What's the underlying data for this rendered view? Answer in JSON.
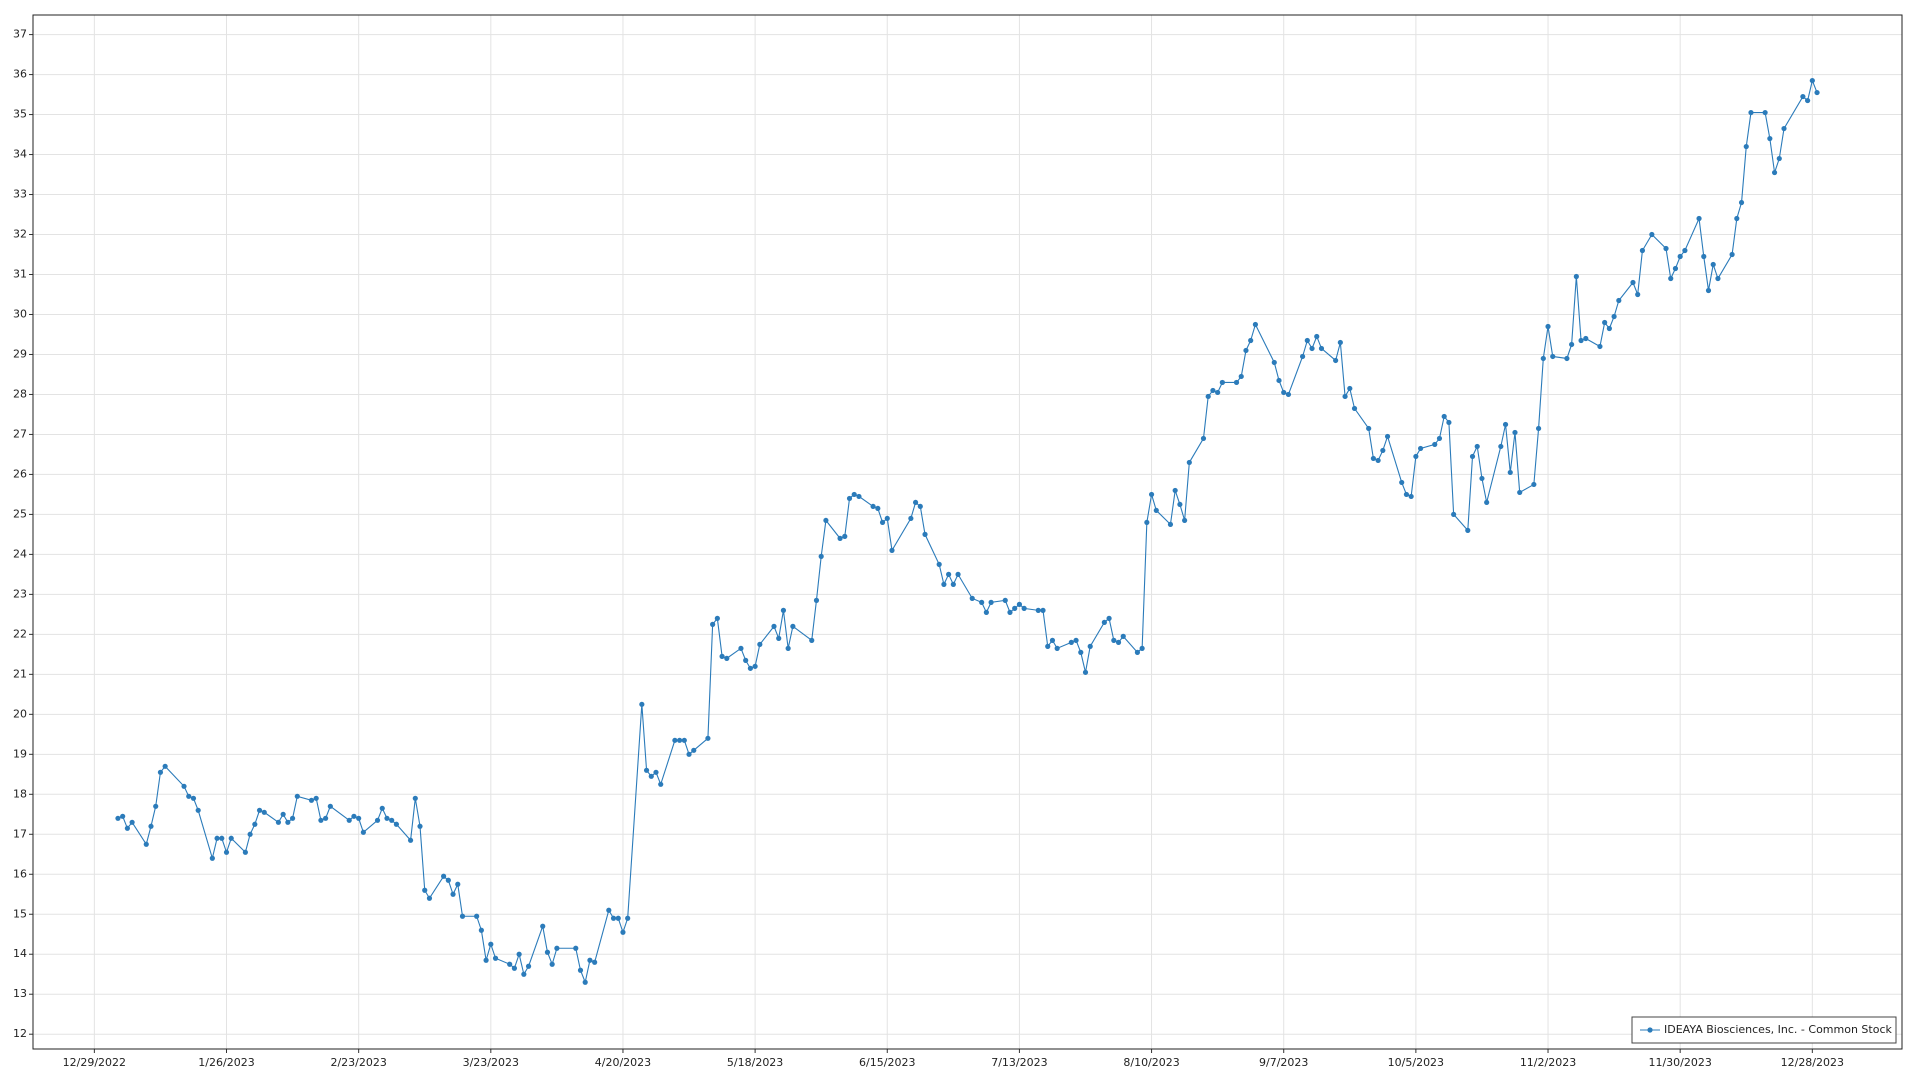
{
  "chart_data": {
    "type": "line",
    "x": [
      "1/3/2023",
      "1/4/2023",
      "1/5/2023",
      "1/6/2023",
      "1/9/2023",
      "1/10/2023",
      "1/11/2023",
      "1/12/2023",
      "1/13/2023",
      "1/17/2023",
      "1/18/2023",
      "1/19/2023",
      "1/20/2023",
      "1/23/2023",
      "1/24/2023",
      "1/25/2023",
      "1/26/2023",
      "1/27/2023",
      "1/30/2023",
      "1/31/2023",
      "2/1/2023",
      "2/2/2023",
      "2/3/2023",
      "2/6/2023",
      "2/7/2023",
      "2/8/2023",
      "2/9/2023",
      "2/10/2023",
      "2/13/2023",
      "2/14/2023",
      "2/15/2023",
      "2/16/2023",
      "2/17/2023",
      "2/21/2023",
      "2/22/2023",
      "2/23/2023",
      "2/24/2023",
      "2/27/2023",
      "2/28/2023",
      "3/1/2023",
      "3/2/2023",
      "3/3/2023",
      "3/6/2023",
      "3/7/2023",
      "3/8/2023",
      "3/9/2023",
      "3/10/2023",
      "3/13/2023",
      "3/14/2023",
      "3/15/2023",
      "3/16/2023",
      "3/17/2023",
      "3/20/2023",
      "3/21/2023",
      "3/22/2023",
      "3/23/2023",
      "3/24/2023",
      "3/27/2023",
      "3/28/2023",
      "3/29/2023",
      "3/30/2023",
      "3/31/2023",
      "4/3/2023",
      "4/4/2023",
      "4/5/2023",
      "4/6/2023",
      "4/10/2023",
      "4/11/2023",
      "4/12/2023",
      "4/13/2023",
      "4/14/2023",
      "4/17/2023",
      "4/18/2023",
      "4/19/2023",
      "4/20/2023",
      "4/21/2023",
      "4/24/2023",
      "4/25/2023",
      "4/26/2023",
      "4/27/2023",
      "4/28/2023",
      "5/1/2023",
      "5/2/2023",
      "5/3/2023",
      "5/4/2023",
      "5/5/2023",
      "5/8/2023",
      "5/9/2023",
      "5/10/2023",
      "5/11/2023",
      "5/12/2023",
      "5/15/2023",
      "5/16/2023",
      "5/17/2023",
      "5/18/2023",
      "5/19/2023",
      "5/22/2023",
      "5/23/2023",
      "5/24/2023",
      "5/25/2023",
      "5/26/2023",
      "5/30/2023",
      "5/31/2023",
      "6/1/2023",
      "6/2/2023",
      "6/5/2023",
      "6/6/2023",
      "6/7/2023",
      "6/8/2023",
      "6/9/2023",
      "6/12/2023",
      "6/13/2023",
      "6/14/2023",
      "6/15/2023",
      "6/16/2023",
      "6/20/2023",
      "6/21/2023",
      "6/22/2023",
      "6/23/2023",
      "6/26/2023",
      "6/27/2023",
      "6/28/2023",
      "6/29/2023",
      "6/30/2023",
      "7/3/2023",
      "7/5/2023",
      "7/6/2023",
      "7/7/2023",
      "7/10/2023",
      "7/11/2023",
      "7/12/2023",
      "7/13/2023",
      "7/14/2023",
      "7/17/2023",
      "7/18/2023",
      "7/19/2023",
      "7/20/2023",
      "7/21/2023",
      "7/24/2023",
      "7/25/2023",
      "7/26/2023",
      "7/27/2023",
      "7/28/2023",
      "7/31/2023",
      "8/1/2023",
      "8/2/2023",
      "8/3/2023",
      "8/4/2023",
      "8/7/2023",
      "8/8/2023",
      "8/9/2023",
      "8/10/2023",
      "8/11/2023",
      "8/14/2023",
      "8/15/2023",
      "8/16/2023",
      "8/17/2023",
      "8/18/2023",
      "8/21/2023",
      "8/22/2023",
      "8/23/2023",
      "8/24/2023",
      "8/25/2023",
      "8/28/2023",
      "8/29/2023",
      "8/30/2023",
      "8/31/2023",
      "9/1/2023",
      "9/5/2023",
      "9/6/2023",
      "9/7/2023",
      "9/8/2023",
      "9/11/2023",
      "9/12/2023",
      "9/13/2023",
      "9/14/2023",
      "9/15/2023",
      "9/18/2023",
      "9/19/2023",
      "9/20/2023",
      "9/21/2023",
      "9/22/2023",
      "9/25/2023",
      "9/26/2023",
      "9/27/2023",
      "9/28/2023",
      "9/29/2023",
      "10/2/2023",
      "10/3/2023",
      "10/4/2023",
      "10/5/2023",
      "10/6/2023",
      "10/9/2023",
      "10/10/2023",
      "10/11/2023",
      "10/12/2023",
      "10/13/2023",
      "10/16/2023",
      "10/17/2023",
      "10/18/2023",
      "10/19/2023",
      "10/20/2023",
      "10/23/2023",
      "10/24/2023",
      "10/25/2023",
      "10/26/2023",
      "10/27/2023",
      "10/30/2023",
      "10/31/2023",
      "11/1/2023",
      "11/2/2023",
      "11/3/2023",
      "11/6/2023",
      "11/7/2023",
      "11/8/2023",
      "11/9/2023",
      "11/10/2023",
      "11/13/2023",
      "11/14/2023",
      "11/15/2023",
      "11/16/2023",
      "11/17/2023",
      "11/20/2023",
      "11/21/2023",
      "11/22/2023",
      "11/24/2023",
      "11/27/2023",
      "11/28/2023",
      "11/29/2023",
      "11/30/2023",
      "12/1/2023",
      "12/4/2023",
      "12/5/2023",
      "12/6/2023",
      "12/7/2023",
      "12/8/2023",
      "12/11/2023",
      "12/12/2023",
      "12/13/2023",
      "12/14/2023",
      "12/15/2023",
      "12/18/2023",
      "12/19/2023",
      "12/20/2023",
      "12/21/2023",
      "12/22/2023",
      "12/26/2023",
      "12/27/2023",
      "12/28/2023",
      "12/29/2023"
    ],
    "series": [
      {
        "name": "IDEAYA Biosciences, Inc. - Common Stock",
        "color": "#2b7bba",
        "values": [
          17.4,
          17.45,
          17.15,
          17.3,
          16.75,
          17.2,
          17.7,
          18.55,
          18.7,
          18.2,
          17.95,
          17.9,
          17.6,
          16.4,
          16.9,
          16.9,
          16.55,
          16.9,
          16.55,
          17.0,
          17.25,
          17.6,
          17.55,
          17.3,
          17.5,
          17.3,
          17.4,
          17.95,
          17.85,
          17.9,
          17.35,
          17.4,
          17.7,
          17.35,
          17.45,
          17.4,
          17.05,
          17.35,
          17.65,
          17.4,
          17.35,
          17.25,
          16.85,
          17.9,
          17.2,
          15.6,
          15.4,
          15.95,
          15.85,
          15.5,
          15.75,
          14.95,
          14.95,
          14.6,
          13.85,
          14.25,
          13.9,
          13.75,
          13.65,
          14.0,
          13.5,
          13.7,
          14.7,
          14.05,
          13.75,
          14.15,
          14.15,
          13.6,
          13.3,
          13.85,
          13.8,
          15.1,
          14.9,
          14.9,
          14.55,
          14.9,
          20.25,
          18.6,
          18.45,
          18.55,
          18.25,
          19.35,
          19.35,
          19.35,
          19.0,
          19.1,
          19.4,
          22.25,
          22.4,
          21.45,
          21.4,
          21.65,
          21.35,
          21.15,
          21.2,
          21.75,
          22.2,
          21.9,
          22.6,
          21.65,
          22.2,
          21.85,
          22.85,
          23.95,
          24.85,
          24.4,
          24.45,
          25.4,
          25.5,
          25.45,
          25.2,
          25.15,
          24.8,
          24.9,
          24.1,
          24.9,
          25.3,
          25.2,
          24.5,
          23.75,
          23.25,
          23.5,
          23.25,
          23.5,
          22.9,
          22.8,
          22.55,
          22.8,
          22.85,
          22.55,
          22.65,
          22.75,
          22.65,
          22.6,
          22.6,
          21.7,
          21.85,
          21.65,
          21.8,
          21.85,
          21.55,
          21.05,
          21.7,
          22.3,
          22.4,
          21.85,
          21.8,
          21.95,
          21.55,
          21.65,
          24.8,
          25.5,
          25.1,
          24.75,
          25.6,
          25.25,
          24.85,
          26.3,
          26.9,
          27.95,
          28.1,
          28.05,
          28.3,
          28.3,
          28.45,
          29.1,
          29.35,
          29.75,
          28.8,
          28.35,
          28.05,
          28.0,
          28.95,
          29.35,
          29.15,
          29.45,
          29.15,
          28.85,
          29.3,
          27.95,
          28.15,
          27.65,
          27.15,
          26.4,
          26.35,
          26.6,
          26.95,
          25.8,
          25.5,
          25.45,
          26.45,
          26.65,
          26.75,
          26.9,
          27.45,
          27.3,
          25.0,
          24.6,
          26.45,
          26.7,
          25.9,
          25.3,
          26.7,
          27.25,
          26.05,
          27.05,
          25.55,
          25.75,
          27.15,
          28.9,
          29.7,
          28.95,
          28.9,
          29.25,
          30.95,
          29.35,
          29.4,
          29.2,
          29.8,
          29.65,
          29.95,
          30.35,
          30.8,
          30.5,
          31.6,
          32.0,
          31.65,
          30.9,
          31.15,
          31.45,
          31.6,
          32.4,
          31.45,
          30.6,
          31.25,
          30.9,
          31.5,
          32.4,
          32.8,
          34.2,
          35.05,
          35.05,
          34.4,
          33.55,
          33.9,
          34.65,
          35.45,
          35.35,
          35.85,
          35.55
        ]
      }
    ],
    "xlim": [
      "12/16/2022",
      "1/16/2024"
    ],
    "xticks": [
      "12/29/2022",
      "1/26/2023",
      "2/23/2023",
      "3/23/2023",
      "4/20/2023",
      "5/18/2023",
      "6/15/2023",
      "7/13/2023",
      "8/10/2023",
      "9/7/2023",
      "10/5/2023",
      "11/2/2023",
      "11/30/2023",
      "12/28/2023"
    ],
    "ylim": [
      11.63,
      37.49
    ],
    "yticks": [
      12,
      13,
      14,
      15,
      16,
      17,
      18,
      19,
      20,
      21,
      22,
      23,
      24,
      25,
      26,
      27,
      28,
      29,
      30,
      31,
      32,
      33,
      34,
      35,
      36,
      37
    ],
    "grid": true,
    "legend": "bottom-right"
  }
}
